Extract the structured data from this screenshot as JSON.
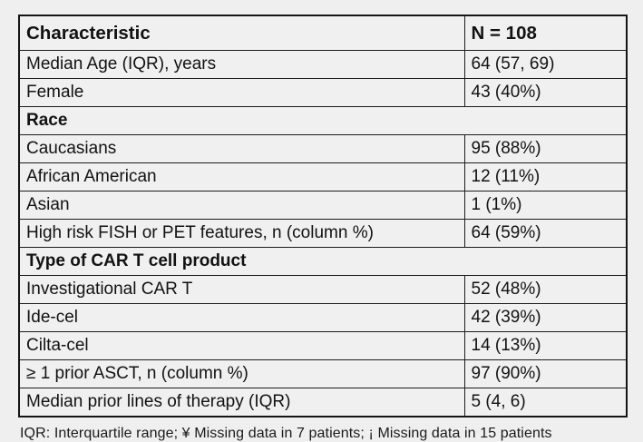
{
  "table": {
    "header": {
      "characteristic": "Characteristic",
      "n": "N = 108"
    },
    "rows": [
      {
        "type": "data",
        "label": "Median Age (IQR), years",
        "value": "64 (57, 69)"
      },
      {
        "type": "data",
        "label": "Female",
        "value": "43 (40%)"
      },
      {
        "type": "section",
        "label": "Race"
      },
      {
        "type": "data",
        "label": "Caucasians",
        "value": "95 (88%)"
      },
      {
        "type": "data",
        "label": "African American",
        "value": "12 (11%)"
      },
      {
        "type": "data",
        "label": "Asian",
        "value": "1 (1%)"
      },
      {
        "type": "data",
        "label": "High risk FISH or PET features, n (column %)",
        "value": "64 (59%)"
      },
      {
        "type": "section",
        "label": "Type of CAR T cell product"
      },
      {
        "type": "data",
        "label": "Investigational CAR T",
        "value": "52 (48%)"
      },
      {
        "type": "data",
        "label": "Ide-cel",
        "value": "42 (39%)"
      },
      {
        "type": "data",
        "label": "Cilta-cel",
        "value": "14 (13%)"
      },
      {
        "type": "data",
        "label": "≥ 1 prior ASCT, n (column %)",
        "value": "97 (90%)"
      },
      {
        "type": "data",
        "label": "Median prior lines of therapy (IQR)",
        "value": "5 (4, 6)"
      }
    ]
  },
  "footnote": "IQR: Interquartile range; ¥ Missing data in 7 patients; ¡ Missing data in 15 patients",
  "colors": {
    "page_background": "#efefef",
    "table_border": "#151515",
    "text": "#121212"
  }
}
